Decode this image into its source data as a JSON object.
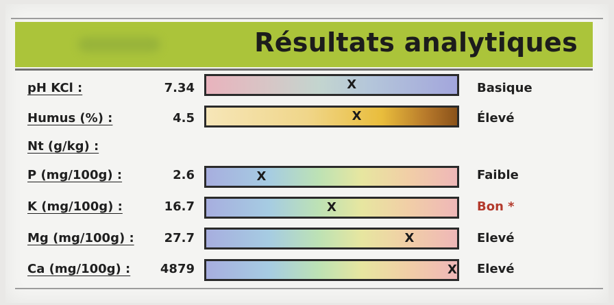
{
  "title": "Résultats analytiques",
  "rows": [
    {
      "label": "pH KCl :",
      "value": "7.34",
      "status": "Basique",
      "gradient": "ph",
      "marker": "X",
      "position_fraction": 0.58
    },
    {
      "label": "Humus (%) :",
      "value": "4.5",
      "status": "Élevé",
      "gradient": "humus",
      "marker": "X",
      "position_fraction": 0.6
    },
    {
      "label": "Nt (g/kg) :",
      "value": "",
      "status": "",
      "gradient": "none"
    },
    {
      "label": "P (mg/100g) :",
      "value": "2.6",
      "status": "Faible",
      "gradient": "nutrient",
      "marker": "X",
      "position_fraction": 0.22
    },
    {
      "label": "K (mg/100g) :",
      "value": "16.7",
      "status": "Bon *",
      "gradient": "nutrient",
      "marker": "X",
      "position_fraction": 0.5
    },
    {
      "label": "Mg (mg/100g) :",
      "value": "27.7",
      "status": "Elevé",
      "gradient": "nutrient",
      "marker": "X",
      "position_fraction": 0.81
    },
    {
      "label": "Ca (mg/100g) :",
      "value": "4879",
      "status": "Elevé",
      "gradient": "nutrient",
      "marker": "X",
      "position_fraction": 0.99
    }
  ],
  "colors": {
    "banner": "#abc43a",
    "status_highlight": "#b33a2c"
  }
}
